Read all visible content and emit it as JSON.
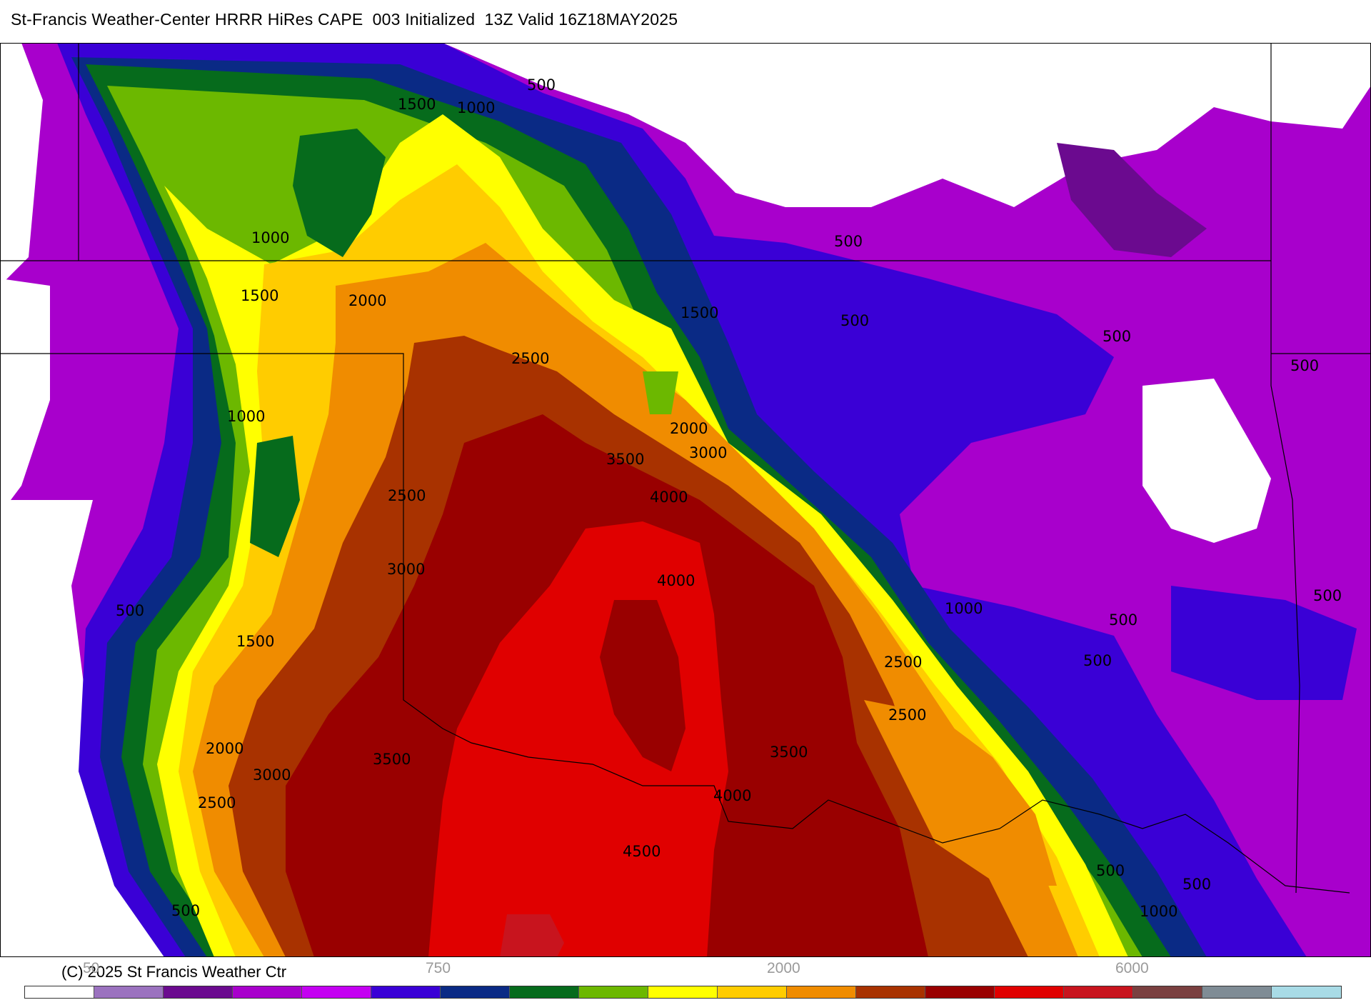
{
  "title": "St-Francis Weather-Center HRRR HiRes CAPE  003 Initialized  13Z Valid 16Z18MAY2025",
  "copyright": "(C) 2025 St Francis Weather Ctr",
  "colorbar": {
    "colors": [
      "#ffffff",
      "#9b72bf",
      "#6b0a8f",
      "#a800cc",
      "#c400f2",
      "#3a00d6",
      "#0a2a85",
      "#066b1c",
      "#6cb800",
      "#ffff00",
      "#ffcc00",
      "#f08c00",
      "#a83200",
      "#990000",
      "#e00000",
      "#c8141e",
      "#7a4040",
      "#7f8c95",
      "#a8dbe6"
    ],
    "tick_labels": [
      "50",
      "750",
      "2000",
      "6000"
    ]
  },
  "contour_labels": [
    "500",
    "1500",
    "1000",
    "1000",
    "500",
    "1500",
    "2000",
    "1500",
    "500",
    "500",
    "500",
    "2500",
    "1000",
    "2000",
    "3000",
    "3500",
    "2500",
    "4000",
    "3000",
    "4000",
    "500",
    "1000",
    "500",
    "1500",
    "500",
    "500",
    "2500",
    "2500",
    "3500",
    "2000",
    "3000",
    "3500",
    "4000",
    "2500",
    "4500",
    "500",
    "1000",
    "500",
    "500"
  ]
}
